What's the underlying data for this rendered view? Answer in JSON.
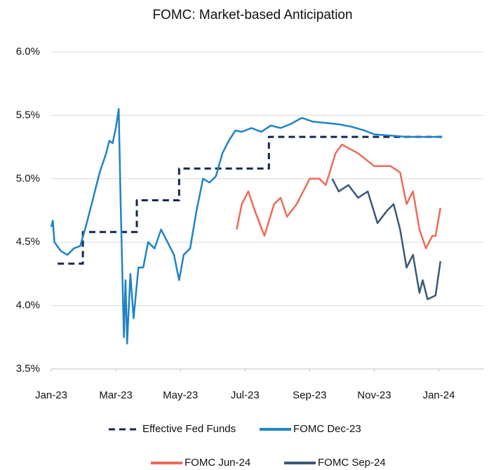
{
  "chart_data": {
    "type": "line",
    "title": "FOMC: Market-based Anticipation",
    "xlim": [
      0,
      13.4
    ],
    "xticks": [
      {
        "value": 0,
        "label": "Jan-23"
      },
      {
        "value": 2,
        "label": "Mar-23"
      },
      {
        "value": 4,
        "label": "May-23"
      },
      {
        "value": 6,
        "label": "Jul-23"
      },
      {
        "value": 8,
        "label": "Sep-23"
      },
      {
        "value": 10,
        "label": "Nov-23"
      },
      {
        "value": 12,
        "label": "Jan-24"
      }
    ],
    "ylim": [
      3.5,
      6.0
    ],
    "yticks": [
      {
        "value": 3.5,
        "label": "3.5%"
      },
      {
        "value": 4.0,
        "label": "4.0%"
      },
      {
        "value": 4.5,
        "label": "4.5%"
      },
      {
        "value": 5.0,
        "label": "5.0%"
      },
      {
        "value": 5.5,
        "label": "5.5%"
      },
      {
        "value": 6.0,
        "label": "6.0%"
      }
    ],
    "grid": true,
    "legend": "bottom",
    "series": [
      {
        "name": "Effective Fed Funds",
        "color": "#16264f",
        "style": "dashed",
        "x": [
          0.2,
          0.98,
          0.98,
          2.65,
          2.65,
          3.96,
          3.96,
          6.74,
          6.74,
          12.1
        ],
        "values": [
          4.33,
          4.33,
          4.58,
          4.58,
          4.83,
          4.83,
          5.08,
          5.08,
          5.33,
          5.33
        ]
      },
      {
        "name": "FOMC Dec-23",
        "color": "#1f83c6",
        "style": "solid",
        "x": [
          0,
          0.05,
          0.1,
          0.3,
          0.5,
          0.7,
          0.9,
          1.1,
          1.3,
          1.5,
          1.7,
          1.8,
          1.9,
          2.0,
          2.09,
          2.15,
          2.25,
          2.3,
          2.35,
          2.45,
          2.55,
          2.7,
          2.85,
          3.0,
          3.2,
          3.4,
          3.6,
          3.8,
          3.96,
          4.1,
          4.3,
          4.5,
          4.7,
          4.9,
          5.1,
          5.3,
          5.5,
          5.7,
          5.9,
          6.2,
          6.5,
          6.8,
          7.1,
          7.4,
          7.76,
          8.1,
          8.5,
          8.9,
          9.3,
          9.7,
          10.0,
          10.5,
          11.0,
          11.5,
          12.1
        ],
        "values": [
          4.62,
          4.67,
          4.5,
          4.43,
          4.4,
          4.45,
          4.47,
          4.65,
          4.85,
          5.05,
          5.2,
          5.3,
          5.28,
          5.4,
          5.55,
          4.8,
          3.75,
          4.2,
          3.7,
          4.25,
          3.9,
          4.3,
          4.3,
          4.5,
          4.45,
          4.6,
          4.5,
          4.4,
          4.2,
          4.4,
          4.45,
          4.75,
          5.0,
          4.97,
          5.02,
          5.2,
          5.3,
          5.38,
          5.37,
          5.4,
          5.37,
          5.42,
          5.4,
          5.43,
          5.48,
          5.45,
          5.44,
          5.43,
          5.41,
          5.38,
          5.35,
          5.34,
          5.33,
          5.33,
          5.33
        ]
      },
      {
        "name": "FOMC Jun-24",
        "color": "#ec6b5a",
        "style": "solid",
        "x": [
          5.74,
          5.9,
          6.1,
          6.3,
          6.6,
          6.9,
          7.1,
          7.3,
          7.6,
          8.0,
          8.3,
          8.5,
          8.8,
          9.0,
          9.5,
          10.0,
          10.5,
          10.8,
          11.0,
          11.2,
          11.4,
          11.6,
          11.8,
          11.9,
          12.05
        ],
        "values": [
          4.6,
          4.8,
          4.9,
          4.75,
          4.55,
          4.8,
          4.85,
          4.7,
          4.8,
          5.0,
          5.0,
          4.95,
          5.2,
          5.27,
          5.2,
          5.1,
          5.1,
          5.05,
          4.8,
          4.9,
          4.6,
          4.45,
          4.55,
          4.55,
          4.77
        ]
      },
      {
        "name": "FOMC Sep-24",
        "color": "#3b5877",
        "style": "solid",
        "x": [
          8.7,
          8.9,
          9.2,
          9.5,
          9.8,
          10.1,
          10.4,
          10.6,
          10.8,
          11.0,
          11.2,
          11.4,
          11.5,
          11.65,
          11.9,
          12.05
        ],
        "values": [
          5.0,
          4.9,
          4.95,
          4.85,
          4.9,
          4.65,
          4.75,
          4.8,
          4.6,
          4.3,
          4.4,
          4.1,
          4.2,
          4.05,
          4.08,
          4.35
        ]
      }
    ]
  }
}
